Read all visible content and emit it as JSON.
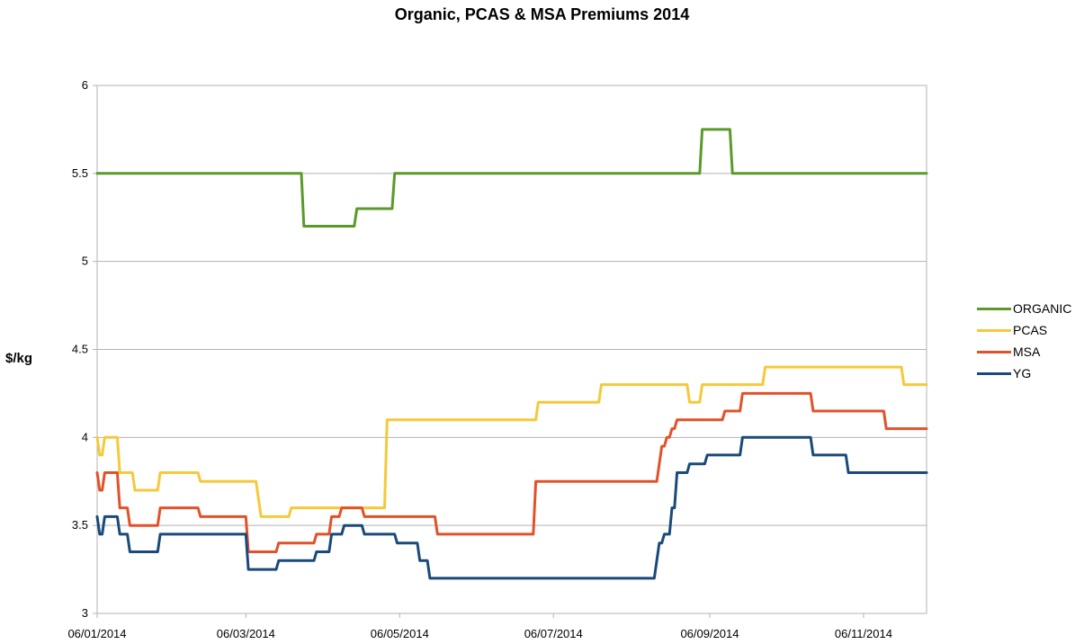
{
  "chart_data": {
    "type": "line",
    "title": "Organic, PCAS & MSA Premiums 2014",
    "ylabel": "$/kg",
    "xlabel": "",
    "ylim": [
      3,
      6
    ],
    "yticks": [
      "3",
      "3.5",
      "4",
      "4.5",
      "5",
      "5.5",
      "6"
    ],
    "xlim": [
      "2014-01-06",
      "2014-12-01"
    ],
    "xtick_labels": [
      "06/01/2014",
      "06/03/2014",
      "06/05/2014",
      "06/07/2014",
      "06/09/2014",
      "06/11/2014"
    ],
    "xtick_dates": [
      "2014-01-06",
      "2014-03-06",
      "2014-05-06",
      "2014-07-06",
      "2014-09-06",
      "2014-11-06"
    ],
    "grid": "horizontal",
    "legend_position": "right",
    "series": [
      {
        "name": "ORGANIC",
        "color": "#5b9a2a",
        "points": [
          [
            "2014-01-06",
            5.5
          ],
          [
            "2014-03-28",
            5.5
          ],
          [
            "2014-03-29",
            5.2
          ],
          [
            "2014-04-18",
            5.2
          ],
          [
            "2014-04-19",
            5.3
          ],
          [
            "2014-05-03",
            5.3
          ],
          [
            "2014-05-04",
            5.5
          ],
          [
            "2014-09-02",
            5.5
          ],
          [
            "2014-09-03",
            5.75
          ],
          [
            "2014-09-14",
            5.75
          ],
          [
            "2014-09-15",
            5.5
          ],
          [
            "2014-12-01",
            5.5
          ]
        ]
      },
      {
        "name": "PCAS",
        "color": "#f5c93a",
        "points": [
          [
            "2014-01-06",
            4.0
          ],
          [
            "2014-01-07",
            3.9
          ],
          [
            "2014-01-08",
            3.9
          ],
          [
            "2014-01-09",
            4.0
          ],
          [
            "2014-01-14",
            4.0
          ],
          [
            "2014-01-15",
            3.8
          ],
          [
            "2014-01-20",
            3.8
          ],
          [
            "2014-01-21",
            3.7
          ],
          [
            "2014-01-30",
            3.7
          ],
          [
            "2014-01-31",
            3.8
          ],
          [
            "2014-02-15",
            3.8
          ],
          [
            "2014-02-16",
            3.75
          ],
          [
            "2014-03-10",
            3.75
          ],
          [
            "2014-03-12",
            3.55
          ],
          [
            "2014-03-23",
            3.55
          ],
          [
            "2014-03-24",
            3.6
          ],
          [
            "2014-04-30",
            3.6
          ],
          [
            "2014-05-01",
            4.1
          ],
          [
            "2014-06-29",
            4.1
          ],
          [
            "2014-06-30",
            4.2
          ],
          [
            "2014-07-24",
            4.2
          ],
          [
            "2014-07-25",
            4.3
          ],
          [
            "2014-08-28",
            4.3
          ],
          [
            "2014-08-29",
            4.2
          ],
          [
            "2014-09-02",
            4.2
          ],
          [
            "2014-09-03",
            4.3
          ],
          [
            "2014-09-27",
            4.3
          ],
          [
            "2014-09-28",
            4.4
          ],
          [
            "2014-11-21",
            4.4
          ],
          [
            "2014-11-22",
            4.3
          ],
          [
            "2014-12-01",
            4.3
          ]
        ]
      },
      {
        "name": "MSA",
        "color": "#e2522a",
        "points": [
          [
            "2014-01-06",
            3.8
          ],
          [
            "2014-01-07",
            3.7
          ],
          [
            "2014-01-08",
            3.7
          ],
          [
            "2014-01-09",
            3.8
          ],
          [
            "2014-01-14",
            3.8
          ],
          [
            "2014-01-15",
            3.6
          ],
          [
            "2014-01-18",
            3.6
          ],
          [
            "2014-01-19",
            3.5
          ],
          [
            "2014-01-30",
            3.5
          ],
          [
            "2014-01-31",
            3.6
          ],
          [
            "2014-02-15",
            3.6
          ],
          [
            "2014-02-16",
            3.55
          ],
          [
            "2014-03-06",
            3.55
          ],
          [
            "2014-03-07",
            3.35
          ],
          [
            "2014-03-18",
            3.35
          ],
          [
            "2014-03-19",
            3.4
          ],
          [
            "2014-04-02",
            3.4
          ],
          [
            "2014-04-03",
            3.45
          ],
          [
            "2014-04-08",
            3.45
          ],
          [
            "2014-04-09",
            3.55
          ],
          [
            "2014-04-12",
            3.55
          ],
          [
            "2014-04-13",
            3.6
          ],
          [
            "2014-04-21",
            3.6
          ],
          [
            "2014-04-22",
            3.55
          ],
          [
            "2014-05-20",
            3.55
          ],
          [
            "2014-05-21",
            3.45
          ],
          [
            "2014-06-28",
            3.45
          ],
          [
            "2014-06-29",
            3.75
          ],
          [
            "2014-08-16",
            3.75
          ],
          [
            "2014-08-18",
            3.95
          ],
          [
            "2014-08-19",
            3.95
          ],
          [
            "2014-08-20",
            4.0
          ],
          [
            "2014-08-21",
            4.0
          ],
          [
            "2014-08-22",
            4.05
          ],
          [
            "2014-08-23",
            4.05
          ],
          [
            "2014-08-24",
            4.1
          ],
          [
            "2014-09-11",
            4.1
          ],
          [
            "2014-09-12",
            4.15
          ],
          [
            "2014-09-18",
            4.15
          ],
          [
            "2014-09-19",
            4.25
          ],
          [
            "2014-10-16",
            4.25
          ],
          [
            "2014-10-17",
            4.15
          ],
          [
            "2014-11-14",
            4.15
          ],
          [
            "2014-11-15",
            4.05
          ],
          [
            "2014-12-01",
            4.05
          ]
        ]
      },
      {
        "name": "YG",
        "color": "#1a4a7a",
        "points": [
          [
            "2014-01-06",
            3.55
          ],
          [
            "2014-01-07",
            3.45
          ],
          [
            "2014-01-08",
            3.45
          ],
          [
            "2014-01-09",
            3.55
          ],
          [
            "2014-01-14",
            3.55
          ],
          [
            "2014-01-15",
            3.45
          ],
          [
            "2014-01-18",
            3.45
          ],
          [
            "2014-01-19",
            3.35
          ],
          [
            "2014-01-30",
            3.35
          ],
          [
            "2014-01-31",
            3.45
          ],
          [
            "2014-03-06",
            3.45
          ],
          [
            "2014-03-07",
            3.25
          ],
          [
            "2014-03-18",
            3.25
          ],
          [
            "2014-03-19",
            3.3
          ],
          [
            "2014-04-02",
            3.3
          ],
          [
            "2014-04-03",
            3.35
          ],
          [
            "2014-04-08",
            3.35
          ],
          [
            "2014-04-09",
            3.45
          ],
          [
            "2014-04-13",
            3.45
          ],
          [
            "2014-04-14",
            3.5
          ],
          [
            "2014-04-21",
            3.5
          ],
          [
            "2014-04-22",
            3.45
          ],
          [
            "2014-05-04",
            3.45
          ],
          [
            "2014-05-05",
            3.4
          ],
          [
            "2014-05-13",
            3.4
          ],
          [
            "2014-05-14",
            3.3
          ],
          [
            "2014-05-17",
            3.3
          ],
          [
            "2014-05-18",
            3.2
          ],
          [
            "2014-08-15",
            3.2
          ],
          [
            "2014-08-17",
            3.4
          ],
          [
            "2014-08-18",
            3.4
          ],
          [
            "2014-08-19",
            3.45
          ],
          [
            "2014-08-21",
            3.45
          ],
          [
            "2014-08-22",
            3.6
          ],
          [
            "2014-08-23",
            3.6
          ],
          [
            "2014-08-24",
            3.8
          ],
          [
            "2014-08-28",
            3.8
          ],
          [
            "2014-08-29",
            3.85
          ],
          [
            "2014-09-04",
            3.85
          ],
          [
            "2014-09-05",
            3.9
          ],
          [
            "2014-09-18",
            3.9
          ],
          [
            "2014-09-19",
            4.0
          ],
          [
            "2014-10-16",
            4.0
          ],
          [
            "2014-10-17",
            3.9
          ],
          [
            "2014-10-30",
            3.9
          ],
          [
            "2014-10-31",
            3.8
          ],
          [
            "2014-12-01",
            3.8
          ]
        ]
      }
    ]
  }
}
